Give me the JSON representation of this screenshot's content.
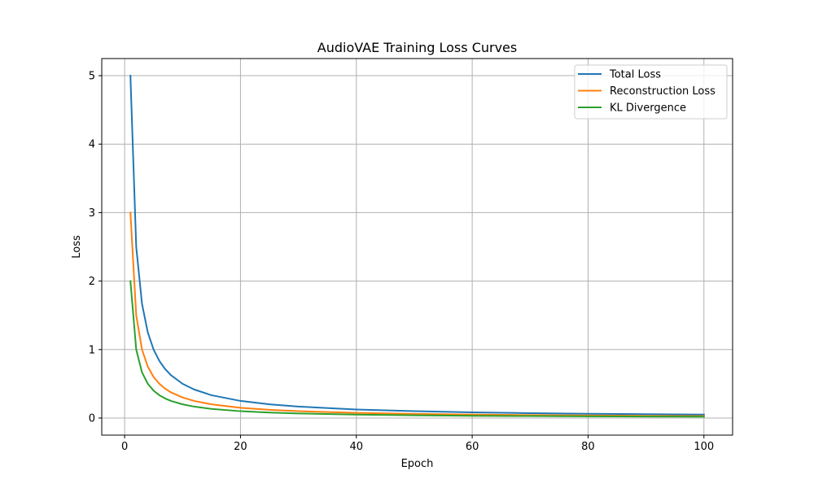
{
  "chart_data": {
    "type": "line",
    "title": "AudioVAE Training Loss Curves",
    "xlabel": "Epoch",
    "ylabel": "Loss",
    "xlim": [
      -3.95,
      104.95
    ],
    "ylim": [
      -0.2497,
      5.2497
    ],
    "xticks": [
      0,
      20,
      40,
      60,
      80,
      100
    ],
    "yticks": [
      0,
      1,
      2,
      3,
      4,
      5
    ],
    "grid": true,
    "legend_position": "top-right",
    "series": [
      {
        "name": "Total Loss",
        "color": "#1f77b4",
        "x": [
          1,
          2,
          3,
          4,
          5,
          6,
          7,
          8,
          10,
          12,
          15,
          20,
          25,
          30,
          40,
          50,
          60,
          70,
          80,
          90,
          100
        ],
        "y": [
          5.0,
          2.5,
          1.667,
          1.25,
          1.0,
          0.833,
          0.714,
          0.625,
          0.5,
          0.417,
          0.333,
          0.25,
          0.2,
          0.167,
          0.125,
          0.1,
          0.083,
          0.071,
          0.0625,
          0.056,
          0.05
        ]
      },
      {
        "name": "Reconstruction Loss",
        "color": "#ff7f0e",
        "x": [
          1,
          2,
          3,
          4,
          5,
          6,
          7,
          8,
          10,
          12,
          15,
          20,
          25,
          30,
          40,
          50,
          60,
          70,
          80,
          90,
          100
        ],
        "y": [
          3.0,
          1.5,
          1.0,
          0.75,
          0.6,
          0.5,
          0.429,
          0.375,
          0.3,
          0.25,
          0.2,
          0.15,
          0.12,
          0.1,
          0.075,
          0.06,
          0.05,
          0.043,
          0.0375,
          0.033,
          0.03
        ]
      },
      {
        "name": "KL Divergence",
        "color": "#2ca02c",
        "x": [
          1,
          2,
          3,
          4,
          5,
          6,
          7,
          8,
          10,
          12,
          15,
          20,
          25,
          30,
          40,
          50,
          60,
          70,
          80,
          90,
          100
        ],
        "y": [
          2.0,
          1.0,
          0.667,
          0.5,
          0.4,
          0.333,
          0.286,
          0.25,
          0.2,
          0.167,
          0.133,
          0.1,
          0.08,
          0.067,
          0.05,
          0.04,
          0.033,
          0.029,
          0.025,
          0.022,
          0.02
        ]
      }
    ]
  }
}
